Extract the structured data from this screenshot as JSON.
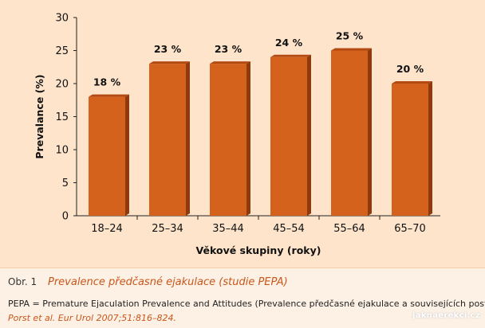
{
  "chart_data": {
    "type": "bar",
    "categories": [
      "18–24",
      "25–34",
      "35–44",
      "45–54",
      "55–64",
      "65–70"
    ],
    "values": [
      18,
      23,
      23,
      24,
      25,
      20
    ],
    "value_labels": [
      "18 %",
      "23 %",
      "23 %",
      "24 %",
      "25 %",
      "20 %"
    ],
    "xlabel": "Věkové skupiny (roky)",
    "ylabel": "Prevalance (%)",
    "ylim": [
      0,
      30
    ],
    "yticks": [
      0,
      5,
      10,
      15,
      20,
      25,
      30
    ],
    "grid": false,
    "bar_color": "#d4621c"
  },
  "caption": {
    "figure_number": "Obr. 1",
    "title": "Prevalence předčasné ejakulace (studie PEPA)",
    "description": "PEPA = Premature Ejaculation Prevalence and Attitudes (Prevalence předčasné ejakulace a souvisejících postojů)",
    "reference": "Porst et al. Eur Urol 2007;51:816–824."
  },
  "watermark": "jaknaerekci.cz"
}
